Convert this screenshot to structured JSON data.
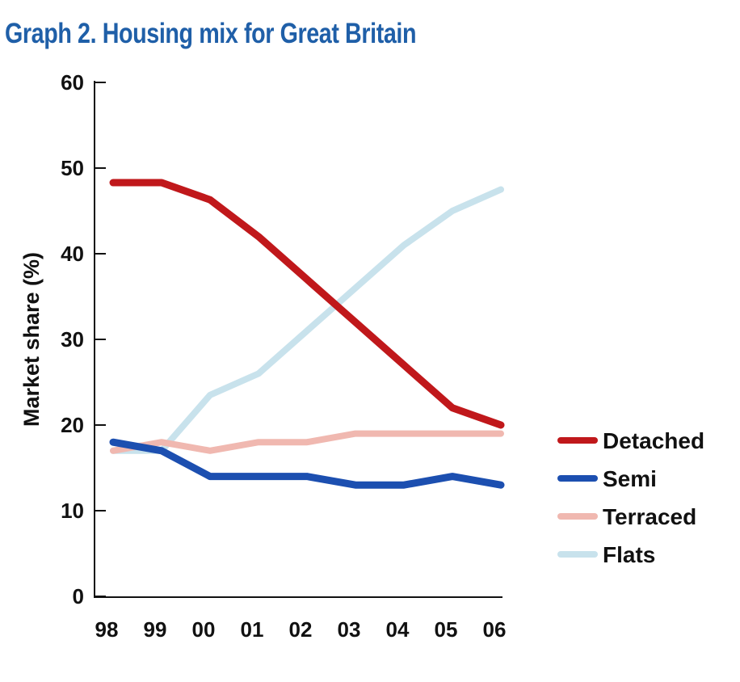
{
  "chart_data": {
    "type": "line",
    "title": "Graph 2. Housing mix for Great Britain",
    "xlabel": "",
    "ylabel": "Market share (%)",
    "categories": [
      "98",
      "99",
      "00",
      "01",
      "02",
      "03",
      "04",
      "05",
      "06"
    ],
    "ylim": [
      0,
      60
    ],
    "yticks": [
      0,
      10,
      20,
      30,
      40,
      50,
      60
    ],
    "grid": false,
    "legend_position": "right",
    "series": [
      {
        "name": "Detached",
        "color": "#c0181b",
        "values": [
          48.3,
          48.3,
          46.3,
          42,
          37,
          32,
          27,
          22,
          20
        ]
      },
      {
        "name": "Semi",
        "color": "#1c4fb0",
        "values": [
          18,
          17,
          14,
          14,
          14,
          13,
          13,
          14,
          13
        ]
      },
      {
        "name": "Terraced",
        "color": "#f0b8b0",
        "values": [
          17,
          18,
          17,
          18,
          18,
          19,
          19,
          19,
          19
        ]
      },
      {
        "name": "Flats",
        "color": "#c8e2ec",
        "values": [
          17,
          17,
          23.5,
          26,
          31,
          36,
          41,
          45,
          47.5
        ]
      }
    ]
  }
}
